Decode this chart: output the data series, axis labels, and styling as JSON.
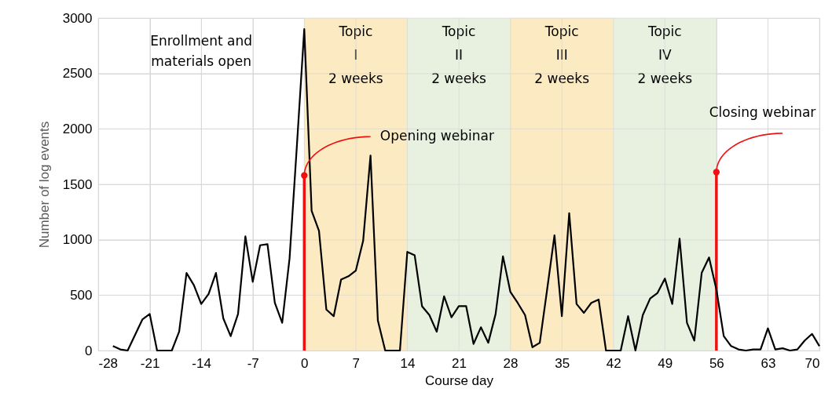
{
  "chart_data": {
    "type": "line",
    "xlabel": "Course day",
    "ylabel": "Number of log events",
    "x": [
      -26,
      -25,
      -24,
      -23,
      -22,
      -21,
      -20,
      -19,
      -18,
      -17,
      -16,
      -15,
      -14,
      -13,
      -12,
      -11,
      -10,
      -9,
      -8,
      -7,
      -6,
      -5,
      -4,
      -3,
      -2,
      -1,
      0,
      1,
      2,
      3,
      4,
      5,
      6,
      7,
      8,
      9,
      10,
      11,
      12,
      13,
      14,
      15,
      16,
      17,
      18,
      19,
      20,
      21,
      22,
      23,
      24,
      25,
      26,
      27,
      28,
      29,
      30,
      31,
      32,
      33,
      34,
      35,
      36,
      37,
      38,
      39,
      40,
      41,
      42,
      43,
      44,
      45,
      46,
      47,
      48,
      49,
      50,
      51,
      52,
      53,
      54,
      55,
      56,
      57,
      58,
      59,
      60,
      61,
      62,
      63,
      64,
      65,
      66,
      67,
      68,
      69,
      70
    ],
    "series": [
      {
        "type": "lollipop",
        "x": [
          0,
          56
        ],
        "color": "#ee1111",
        "values": [
          1580,
          1610
        ]
      },
      {
        "color": "#000000",
        "values": [
          40,
          10,
          0,
          140,
          280,
          330,
          0,
          0,
          0,
          170,
          700,
          590,
          420,
          510,
          700,
          290,
          130,
          330,
          1030,
          620,
          950,
          960,
          430,
          250,
          830,
          1850,
          2900,
          1260,
          1080,
          370,
          310,
          640,
          670,
          720,
          990,
          1760,
          270,
          0,
          0,
          0,
          890,
          860,
          400,
          320,
          170,
          490,
          300,
          400,
          400,
          60,
          210,
          70,
          330,
          850,
          530,
          430,
          320,
          30,
          70,
          550,
          1040,
          310,
          1240,
          420,
          340,
          430,
          460,
          0,
          0,
          0,
          310,
          0,
          320,
          470,
          520,
          650,
          420,
          1010,
          250,
          90,
          700,
          840,
          550,
          130,
          40,
          10,
          0,
          10,
          10,
          200,
          10,
          20,
          0,
          10,
          90,
          150,
          40
        ]
      }
    ],
    "xlim": [
      -28,
      70
    ],
    "xticks": [
      -28,
      -21,
      -14,
      -7,
      0,
      7,
      14,
      21,
      28,
      35,
      42,
      49,
      56,
      63,
      70
    ],
    "ylim": [
      0,
      3000
    ],
    "yticks": [
      0,
      500,
      1000,
      1500,
      2000,
      2500,
      3000
    ],
    "grid": true,
    "bands": [
      {
        "axis": "x",
        "from": 0,
        "to": 14,
        "label": "Topic\nI\n2 weeks",
        "color": "#fbe6b8"
      },
      {
        "axis": "x",
        "from": 14,
        "to": 28,
        "label": "Topic\nII\n2 weeks",
        "color": "#e4eedb"
      },
      {
        "axis": "x",
        "from": 28,
        "to": 42,
        "label": "Topic\nIII\n2 weeks",
        "color": "#fbe6b8"
      },
      {
        "axis": "x",
        "from": 42,
        "to": 56,
        "label": "Topic\nIV\n2 weeks",
        "color": "#e4eedb"
      }
    ],
    "annotations": [
      "Enrollment and\nmaterials open",
      "Opening webinar",
      "Closing webinar"
    ]
  }
}
